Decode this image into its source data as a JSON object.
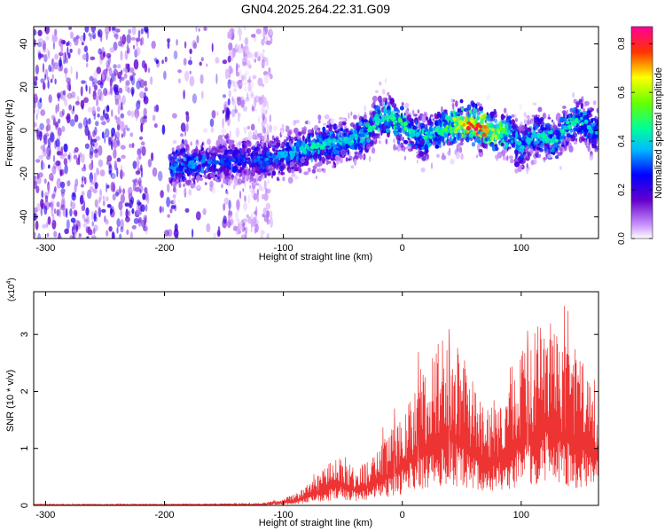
{
  "title": "GN04.2025.264.22.31.G09",
  "chart_data": [
    {
      "type": "heatmap",
      "xlabel": "Height of straight line (km)",
      "ylabel": "Frequency (Hz)",
      "xlim": [
        -310,
        165
      ],
      "ylim": [
        -50,
        48
      ],
      "x_ticks": [
        -300,
        -200,
        -100,
        0,
        100
      ],
      "y_ticks": [
        -40,
        -20,
        0,
        20,
        40
      ],
      "colorbar": {
        "label": "Normalized spectral amplitude",
        "range": [
          0,
          0.87
        ],
        "ticks": [
          0.0,
          0.2,
          0.4,
          0.6,
          0.8
        ]
      },
      "ridge": {
        "x": [
          -195,
          -170,
          -150,
          -130,
          -110,
          -90,
          -70,
          -50,
          -30,
          -20,
          -10,
          0,
          10,
          20,
          30,
          40,
          50,
          60,
          70,
          80,
          90,
          100,
          110,
          120,
          130,
          140,
          150,
          160
        ],
        "frequency": [
          -17,
          -15,
          -15,
          -14,
          -13,
          -10,
          -7,
          -5,
          -2,
          6,
          5,
          3,
          -2,
          -4,
          0,
          2,
          3,
          2,
          1,
          0,
          -1,
          -8,
          -2,
          -3,
          -5,
          3,
          5,
          0
        ],
        "peak_amplitude": [
          0.35,
          0.35,
          0.3,
          0.3,
          0.35,
          0.4,
          0.45,
          0.4,
          0.45,
          0.45,
          0.5,
          0.5,
          0.4,
          0.45,
          0.45,
          0.55,
          0.7,
          0.85,
          0.8,
          0.65,
          0.45,
          0.4,
          0.4,
          0.45,
          0.45,
          0.45,
          0.45,
          0.4
        ]
      },
      "noise_region_x": [
        -310,
        -125
      ]
    },
    {
      "type": "line",
      "color": "#ee3333",
      "xlabel": "Height of straight line (km)",
      "ylabel": "SNR (10 * v/v)",
      "multiplier_label": "(x10",
      "multiplier_exp": "4",
      "multiplier_close": ")",
      "xlim": [
        -310,
        165
      ],
      "ylim": [
        0,
        3.75
      ],
      "x_ticks": [
        -300,
        -200,
        -100,
        0,
        100
      ],
      "y_ticks": [
        0,
        1,
        2,
        3
      ],
      "series": [
        {
          "x": [
            -310,
            -200,
            -120,
            -110,
            -100,
            -90,
            -80,
            -70,
            -60,
            -50,
            -40,
            -30,
            -20,
            -10,
            0,
            10,
            20,
            30,
            40,
            50,
            60,
            70,
            80,
            90,
            100,
            110,
            120,
            130,
            140,
            150,
            160,
            165
          ],
          "envelope": [
            0.02,
            0.02,
            0.03,
            0.05,
            0.1,
            0.15,
            0.3,
            0.45,
            0.6,
            0.7,
            0.5,
            0.6,
            0.8,
            1.0,
            1.3,
            1.6,
            1.9,
            2.2,
            2.3,
            2.1,
            1.7,
            1.4,
            1.5,
            1.9,
            2.1,
            2.3,
            2.6,
            2.4,
            2.2,
            2.0,
            1.8,
            1.7
          ]
        }
      ]
    }
  ]
}
